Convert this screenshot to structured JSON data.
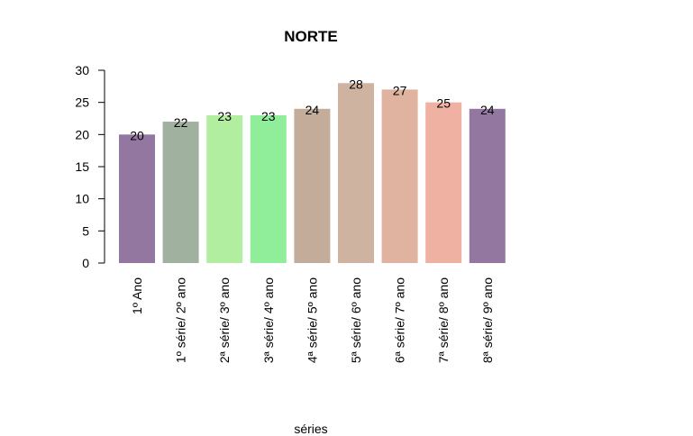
{
  "chart_data": {
    "type": "bar",
    "title": "NORTE",
    "xlabel": "séries",
    "ylabel": "",
    "ylim": [
      0,
      30
    ],
    "yticks": [
      0,
      5,
      10,
      15,
      20,
      25,
      30
    ],
    "categories": [
      "1º Ano",
      "1º série/ 2º ano",
      "2ª série/ 3º ano",
      "3ª série/ 4º ano",
      "4ª série/ 5º ano",
      "5ª série/ 6º ano",
      "6ª série/ 7º ano",
      "7ª série/ 8º ano",
      "8ª série/ 9º ano"
    ],
    "values": [
      20,
      22,
      23,
      23,
      24,
      28,
      27,
      25,
      24
    ],
    "colors": [
      "#9377a1",
      "#a0b1a0",
      "#b2ee9f",
      "#90ee9b",
      "#c3ad9a",
      "#cfb3a1",
      "#e0b3a0",
      "#efb1a2",
      "#9377a1"
    ],
    "grid": false,
    "legend": "none"
  }
}
